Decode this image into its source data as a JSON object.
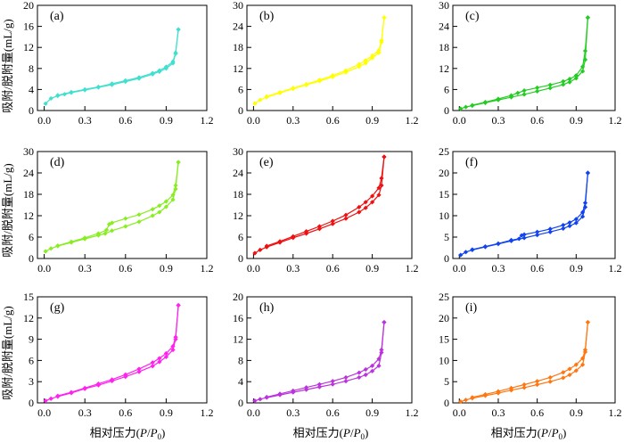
{
  "figure": {
    "ylabel": "吸附/脱附量(mL/g)",
    "xlabel_prefix": "相对压力(",
    "xlabel_p": "P",
    "xlabel_slash": "/",
    "xlabel_p0": "P",
    "xlabel_sub": "0",
    "xlabel_suffix": ")"
  },
  "chart_data": [
    {
      "type": "line",
      "label": "(a)",
      "color": "#40e0d0",
      "xlim": [
        -0.05,
        1.2
      ],
      "ylim": [
        0,
        20
      ],
      "xticks": [
        "0.0",
        "0.3",
        "0.6",
        "0.9",
        "1.2"
      ],
      "yticks": [
        "0",
        "4",
        "8",
        "12",
        "16",
        "20"
      ],
      "adsorption": {
        "x": [
          0.01,
          0.05,
          0.1,
          0.15,
          0.2,
          0.3,
          0.4,
          0.5,
          0.6,
          0.7,
          0.8,
          0.85,
          0.9,
          0.95,
          0.97,
          0.99
        ],
        "y": [
          1.3,
          2.3,
          2.8,
          3.1,
          3.4,
          3.9,
          4.4,
          4.9,
          5.5,
          6.1,
          6.9,
          7.4,
          8.0,
          9.0,
          10.8,
          15.4
        ]
      },
      "desorption": {
        "x": [
          0.99,
          0.97,
          0.95,
          0.9,
          0.85,
          0.8,
          0.7,
          0.6,
          0.5,
          0.4,
          0.3,
          0.2,
          0.1
        ],
        "y": [
          15.4,
          11.0,
          9.3,
          8.3,
          7.6,
          7.1,
          6.3,
          5.7,
          5.1,
          4.5,
          4.0,
          3.5,
          2.9
        ]
      }
    },
    {
      "type": "line",
      "label": "(b)",
      "color": "#ffff00",
      "xlim": [
        -0.05,
        1.2
      ],
      "ylim": [
        0,
        30
      ],
      "xticks": [
        "0.0",
        "0.3",
        "0.6",
        "0.9",
        "1.2"
      ],
      "yticks": [
        "0",
        "6",
        "12",
        "18",
        "24",
        "30"
      ],
      "adsorption": {
        "x": [
          0.01,
          0.05,
          0.1,
          0.2,
          0.3,
          0.4,
          0.5,
          0.6,
          0.7,
          0.8,
          0.85,
          0.9,
          0.95,
          0.97,
          0.99
        ],
        "y": [
          2.0,
          3.0,
          3.8,
          5.0,
          6.2,
          7.3,
          8.4,
          9.6,
          10.9,
          12.5,
          13.5,
          15.0,
          16.5,
          19.5,
          26.5
        ]
      },
      "desorption": {
        "x": [
          0.99,
          0.97,
          0.95,
          0.9,
          0.85,
          0.8,
          0.7,
          0.6,
          0.5,
          0.4,
          0.3,
          0.2,
          0.1
        ],
        "y": [
          26.5,
          20.0,
          17.2,
          15.6,
          14.3,
          13.2,
          11.4,
          10.0,
          8.7,
          7.5,
          6.4,
          5.2,
          4.0
        ]
      }
    },
    {
      "type": "line",
      "label": "(c)",
      "color": "#22cc22",
      "xlim": [
        -0.05,
        1.2
      ],
      "ylim": [
        0,
        30
      ],
      "xticks": [
        "0.0",
        "0.3",
        "0.6",
        "0.9",
        "1.2"
      ],
      "yticks": [
        "0",
        "6",
        "12",
        "18",
        "24",
        "30"
      ],
      "adsorption": {
        "x": [
          0.01,
          0.05,
          0.1,
          0.2,
          0.3,
          0.4,
          0.5,
          0.6,
          0.7,
          0.8,
          0.85,
          0.9,
          0.95,
          0.97,
          0.99
        ],
        "y": [
          0.5,
          1.0,
          1.4,
          2.2,
          3.0,
          3.8,
          4.6,
          5.5,
          6.4,
          7.4,
          8.1,
          9.2,
          11.2,
          14.5,
          26.5
        ]
      },
      "desorption": {
        "x": [
          0.99,
          0.97,
          0.95,
          0.9,
          0.85,
          0.8,
          0.7,
          0.6,
          0.5,
          0.45,
          0.4,
          0.3,
          0.2,
          0.1
        ],
        "y": [
          26.5,
          17.0,
          12.5,
          10.0,
          9.0,
          8.3,
          7.3,
          6.5,
          5.7,
          5.0,
          4.3,
          3.3,
          2.4,
          1.5
        ]
      }
    },
    {
      "type": "line",
      "label": "(d)",
      "color": "#88ee22",
      "xlim": [
        -0.05,
        1.2
      ],
      "ylim": [
        0,
        30
      ],
      "xticks": [
        "0.0",
        "0.3",
        "0.6",
        "0.9",
        "1.2"
      ],
      "yticks": [
        "0",
        "6",
        "12",
        "18",
        "24",
        "30"
      ],
      "adsorption": {
        "x": [
          0.01,
          0.05,
          0.1,
          0.2,
          0.3,
          0.4,
          0.45,
          0.5,
          0.6,
          0.7,
          0.8,
          0.85,
          0.9,
          0.95,
          0.97,
          0.99
        ],
        "y": [
          2.0,
          2.8,
          3.5,
          4.5,
          5.5,
          6.5,
          7.0,
          7.8,
          9.0,
          10.3,
          12.0,
          13.0,
          14.5,
          16.5,
          19.5,
          27.0
        ]
      },
      "desorption": {
        "x": [
          0.99,
          0.97,
          0.95,
          0.9,
          0.85,
          0.8,
          0.7,
          0.6,
          0.5,
          0.48,
          0.46,
          0.4,
          0.3,
          0.2,
          0.1
        ],
        "y": [
          27.0,
          20.5,
          17.8,
          16.0,
          14.8,
          13.8,
          12.3,
          11.2,
          10.0,
          9.6,
          8.0,
          7.0,
          5.8,
          4.7,
          3.6
        ]
      }
    },
    {
      "type": "line",
      "label": "(e)",
      "color": "#ee1111",
      "xlim": [
        -0.05,
        1.2
      ],
      "ylim": [
        0,
        30
      ],
      "xticks": [
        "0.0",
        "0.3",
        "0.6",
        "0.9",
        "1.2"
      ],
      "yticks": [
        "0",
        "6",
        "12",
        "18",
        "24",
        "30"
      ],
      "adsorption": {
        "x": [
          0.01,
          0.05,
          0.1,
          0.2,
          0.3,
          0.4,
          0.5,
          0.6,
          0.7,
          0.8,
          0.85,
          0.9,
          0.95,
          0.97,
          0.99
        ],
        "y": [
          1.5,
          2.4,
          3.2,
          4.5,
          5.8,
          7.0,
          8.3,
          9.7,
          11.2,
          13.0,
          14.2,
          15.8,
          17.8,
          20.5,
          28.5
        ]
      },
      "desorption": {
        "x": [
          0.99,
          0.97,
          0.95,
          0.9,
          0.85,
          0.8,
          0.7,
          0.6,
          0.5,
          0.4,
          0.3,
          0.2,
          0.1
        ],
        "y": [
          28.5,
          22.5,
          19.8,
          17.5,
          15.8,
          14.4,
          12.2,
          10.5,
          9.0,
          7.6,
          6.2,
          4.8,
          3.5
        ]
      }
    },
    {
      "type": "line",
      "label": "(f)",
      "color": "#1144ee",
      "xlim": [
        -0.05,
        1.2
      ],
      "ylim": [
        0,
        25
      ],
      "xticks": [
        "0.0",
        "0.3",
        "0.6",
        "0.9",
        "1.2"
      ],
      "yticks": [
        "0",
        "5",
        "10",
        "15",
        "20",
        "25"
      ],
      "adsorption": {
        "x": [
          0.01,
          0.05,
          0.1,
          0.2,
          0.3,
          0.4,
          0.5,
          0.6,
          0.7,
          0.8,
          0.85,
          0.9,
          0.95,
          0.97,
          0.99
        ],
        "y": [
          0.8,
          1.5,
          2.0,
          2.7,
          3.4,
          4.1,
          4.8,
          5.5,
          6.2,
          7.0,
          7.6,
          8.3,
          9.8,
          12.0,
          20.0
        ]
      },
      "desorption": {
        "x": [
          0.99,
          0.97,
          0.95,
          0.9,
          0.85,
          0.8,
          0.7,
          0.6,
          0.5,
          0.48,
          0.46,
          0.4,
          0.3,
          0.2,
          0.1
        ],
        "y": [
          20.0,
          13.0,
          10.8,
          9.2,
          8.4,
          7.8,
          6.9,
          6.2,
          5.6,
          5.4,
          4.6,
          4.3,
          3.5,
          2.8,
          2.1
        ]
      }
    },
    {
      "type": "line",
      "label": "(g)",
      "color": "#ff22ee",
      "xlim": [
        -0.05,
        1.2
      ],
      "ylim": [
        0,
        15
      ],
      "xticks": [
        "0.0",
        "0.3",
        "0.6",
        "0.9",
        "1.2"
      ],
      "yticks": [
        "0",
        "3",
        "6",
        "9",
        "12",
        "15"
      ],
      "adsorption": {
        "x": [
          0.01,
          0.05,
          0.1,
          0.2,
          0.3,
          0.4,
          0.5,
          0.6,
          0.7,
          0.8,
          0.85,
          0.9,
          0.95,
          0.97,
          0.99
        ],
        "y": [
          0.3,
          0.6,
          0.9,
          1.4,
          2.0,
          2.5,
          3.1,
          3.7,
          4.4,
          5.2,
          5.8,
          6.5,
          7.5,
          9.0,
          13.8
        ]
      },
      "desorption": {
        "x": [
          0.99,
          0.97,
          0.95,
          0.9,
          0.85,
          0.8,
          0.7,
          0.6,
          0.5,
          0.4,
          0.3,
          0.2,
          0.1
        ],
        "y": [
          13.8,
          9.3,
          8.0,
          7.0,
          6.3,
          5.7,
          4.8,
          4.0,
          3.3,
          2.7,
          2.1,
          1.5,
          1.0
        ]
      }
    },
    {
      "type": "line",
      "label": "(h)",
      "color": "#bb33dd",
      "xlim": [
        -0.05,
        1.2
      ],
      "ylim": [
        0,
        20
      ],
      "xticks": [
        "0.0",
        "0.3",
        "0.6",
        "0.9",
        "1.2"
      ],
      "yticks": [
        "0",
        "4",
        "8",
        "12",
        "16",
        "20"
      ],
      "adsorption": {
        "x": [
          0.01,
          0.05,
          0.1,
          0.2,
          0.3,
          0.4,
          0.5,
          0.6,
          0.7,
          0.8,
          0.85,
          0.9,
          0.95,
          0.97,
          0.99
        ],
        "y": [
          0.4,
          0.7,
          1.0,
          1.5,
          2.0,
          2.5,
          3.0,
          3.5,
          4.1,
          4.8,
          5.3,
          6.0,
          7.0,
          9.5,
          15.2
        ]
      },
      "desorption": {
        "x": [
          0.99,
          0.97,
          0.95,
          0.9,
          0.85,
          0.8,
          0.7,
          0.6,
          0.5,
          0.4,
          0.3,
          0.2,
          0.1
        ],
        "y": [
          15.2,
          10.0,
          8.3,
          7.0,
          6.3,
          5.7,
          4.8,
          4.1,
          3.5,
          2.9,
          2.3,
          1.7,
          1.1
        ]
      }
    },
    {
      "type": "line",
      "label": "(i)",
      "color": "#ff7711",
      "xlim": [
        -0.05,
        1.2
      ],
      "ylim": [
        0,
        25
      ],
      "xticks": [
        "0.0",
        "0.3",
        "0.6",
        "0.9",
        "1.2"
      ],
      "yticks": [
        "0",
        "5",
        "10",
        "15",
        "20",
        "25"
      ],
      "adsorption": {
        "x": [
          0.01,
          0.05,
          0.1,
          0.2,
          0.3,
          0.4,
          0.5,
          0.6,
          0.7,
          0.8,
          0.85,
          0.9,
          0.95,
          0.97,
          0.99
        ],
        "y": [
          0.3,
          0.7,
          1.1,
          1.7,
          2.3,
          3.0,
          3.6,
          4.3,
          5.0,
          5.9,
          6.6,
          7.6,
          9.0,
          12.0,
          19.0
        ]
      },
      "desorption": {
        "x": [
          0.99,
          0.97,
          0.95,
          0.9,
          0.85,
          0.8,
          0.7,
          0.6,
          0.5,
          0.4,
          0.3,
          0.2,
          0.1
        ],
        "y": [
          19.0,
          12.5,
          10.5,
          9.0,
          8.0,
          7.2,
          6.0,
          5.1,
          4.3,
          3.5,
          2.7,
          2.0,
          1.3
        ]
      }
    }
  ]
}
